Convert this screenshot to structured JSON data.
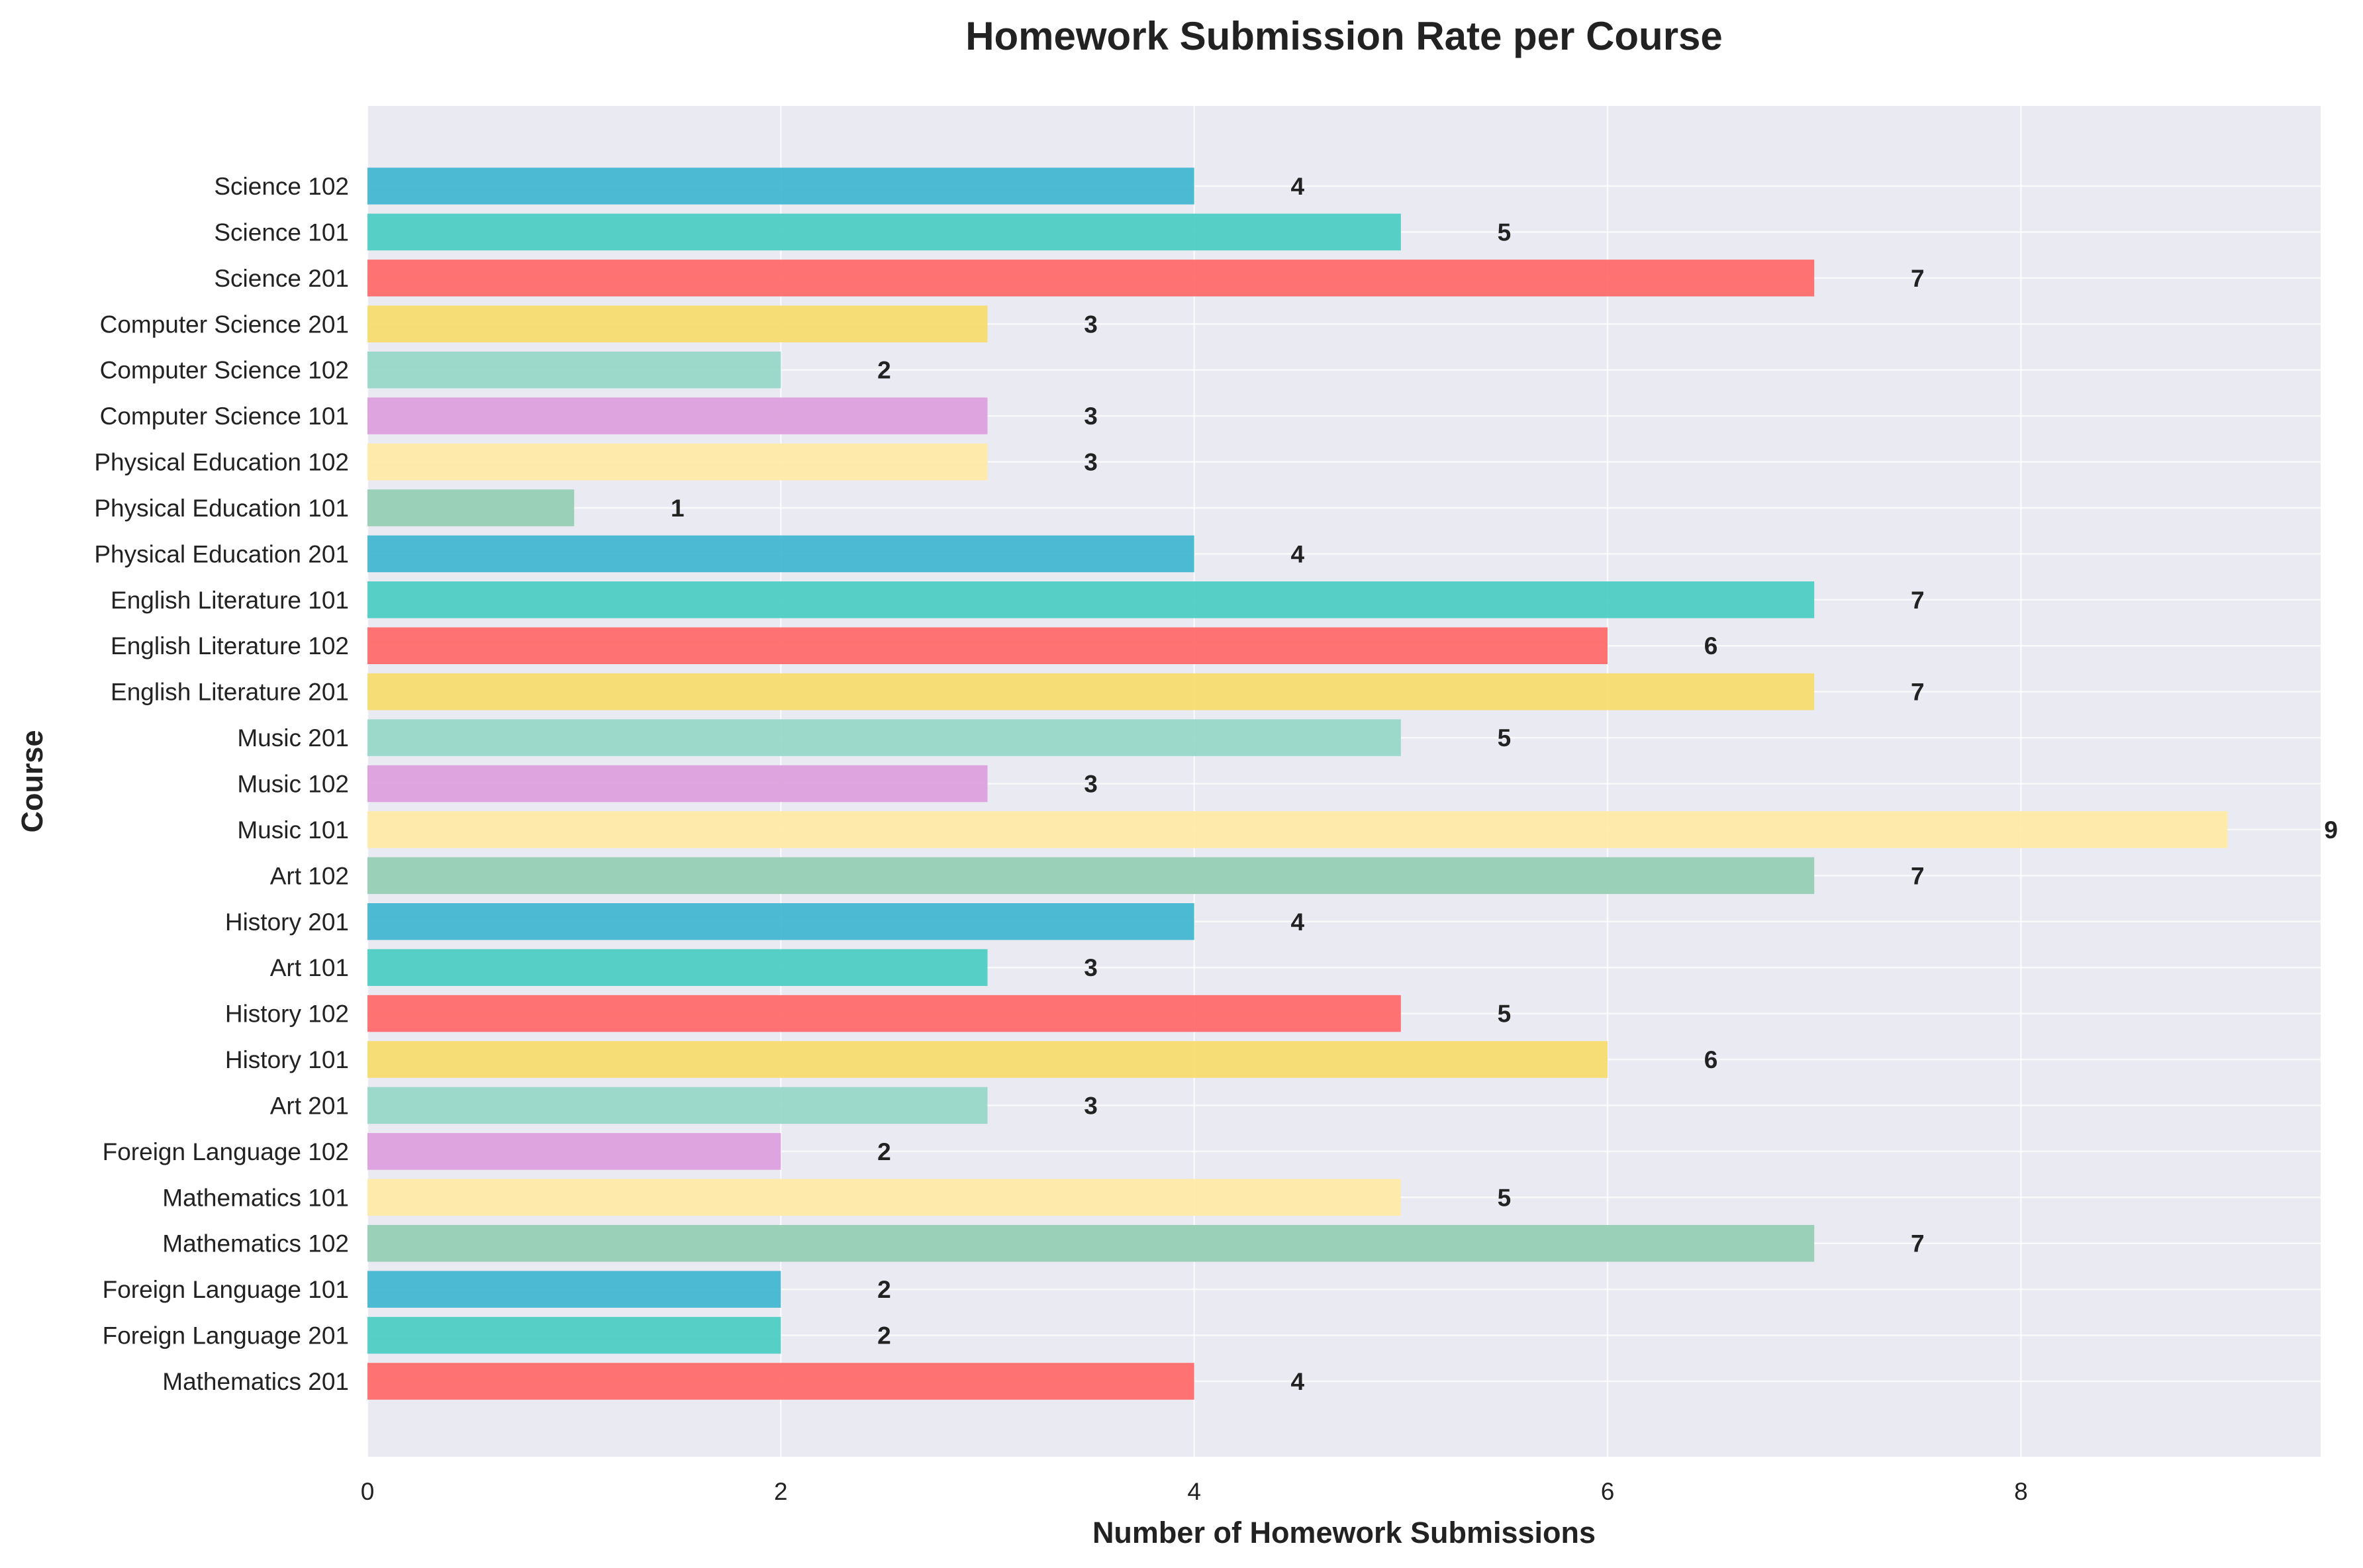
{
  "chart_data": {
    "type": "bar",
    "orientation": "horizontal",
    "title": "Homework Submission Rate per Course",
    "xlabel": "Number of Homework Submissions",
    "ylabel": "Course",
    "xlim": [
      0,
      9.45
    ],
    "xticks": [
      "0",
      "2",
      "4",
      "6",
      "8"
    ],
    "grid": true,
    "legend": "none",
    "categories": [
      "Mathematics 201",
      "Foreign Language 201",
      "Foreign Language 101",
      "Mathematics 102",
      "Mathematics 101",
      "Foreign Language 102",
      "Art 201",
      "History 101",
      "History 102",
      "Art 101",
      "History 201",
      "Art 102",
      "Music 101",
      "Music 102",
      "Music 201",
      "English Literature 201",
      "English Literature 102",
      "English Literature 101",
      "Physical Education 201",
      "Physical Education 101",
      "Physical Education 102",
      "Computer Science 101",
      "Computer Science 102",
      "Computer Science 201",
      "Science 201",
      "Science 101",
      "Science 102"
    ],
    "values": [
      4,
      2,
      2,
      7,
      5,
      2,
      3,
      6,
      5,
      3,
      4,
      7,
      9,
      3,
      5,
      7,
      6,
      7,
      4,
      1,
      3,
      3,
      2,
      3,
      7,
      5,
      4
    ],
    "value_labels": [
      "4",
      "2",
      "2",
      "7",
      "5",
      "2",
      "3",
      "6",
      "5",
      "3",
      "4",
      "7",
      "9",
      "3",
      "5",
      "7",
      "6",
      "7",
      "4",
      "1",
      "3",
      "3",
      "2",
      "3",
      "7",
      "5",
      "4"
    ],
    "colors": [
      "#ff6b6b",
      "#4ecdc4",
      "#45b7d1",
      "#96ceb4",
      "#ffeaa7",
      "#dda0dd",
      "#98d8c8",
      "#f7dc6f"
    ]
  }
}
